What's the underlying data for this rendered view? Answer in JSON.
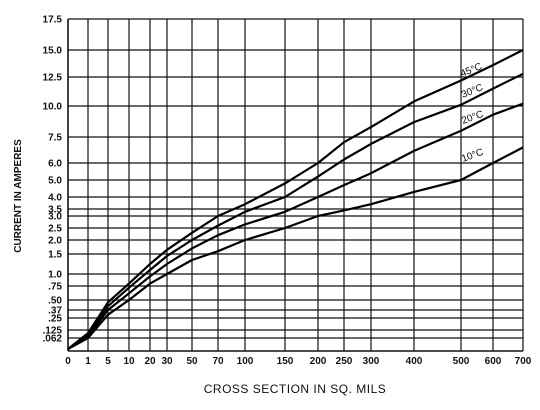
{
  "chart_data": {
    "type": "line",
    "title": "",
    "xlabel": "CROSS SECTION IN SQ. MILS",
    "ylabel": "CURRENT IN AMPERES",
    "grid": true,
    "x_ticks": [
      "0",
      "1",
      "5",
      "10",
      "20",
      "30",
      "50",
      "70",
      "100",
      "150",
      "200",
      "250",
      "300",
      "400",
      "500",
      "600",
      "700"
    ],
    "y_ticks": [
      ".062",
      ".125",
      ".25",
      ".37",
      ".50",
      ".75",
      "1.0",
      "1.5",
      "2.0",
      "2.5",
      "3.0",
      "3.5",
      "4.0",
      "5.0",
      "6.0",
      "7.5",
      "10.0",
      "12.5",
      "15.0",
      "17.5"
    ],
    "x": [
      0,
      1,
      5,
      10,
      20,
      30,
      50,
      70,
      100,
      150,
      200,
      250,
      300,
      400,
      500,
      600,
      700
    ],
    "series": [
      {
        "name": "10°C",
        "values": [
          0.0,
          0.062,
          0.3,
          0.5,
          0.8,
          1.0,
          1.35,
          1.6,
          2.0,
          2.5,
          3.0,
          3.4,
          3.7,
          4.3,
          5.0,
          6.0,
          6.9
        ]
      },
      {
        "name": "20°C",
        "values": [
          0.0,
          0.075,
          0.37,
          0.62,
          0.95,
          1.25,
          1.7,
          2.2,
          2.65,
          3.3,
          4.0,
          4.7,
          5.4,
          6.7,
          8.0,
          9.3,
          10.2
        ]
      },
      {
        "name": "30°C",
        "values": [
          0.0,
          0.09,
          0.42,
          0.72,
          1.1,
          1.45,
          2.0,
          2.6,
          3.3,
          4.0,
          5.2,
          6.2,
          7.1,
          8.7,
          10.1,
          11.5,
          12.8
        ]
      },
      {
        "name": "45°C",
        "values": [
          0.0,
          0.1,
          0.47,
          0.8,
          1.25,
          1.65,
          2.3,
          3.0,
          3.7,
          4.8,
          6.0,
          7.2,
          8.3,
          10.4,
          12.2,
          13.6,
          15.0
        ]
      }
    ]
  }
}
